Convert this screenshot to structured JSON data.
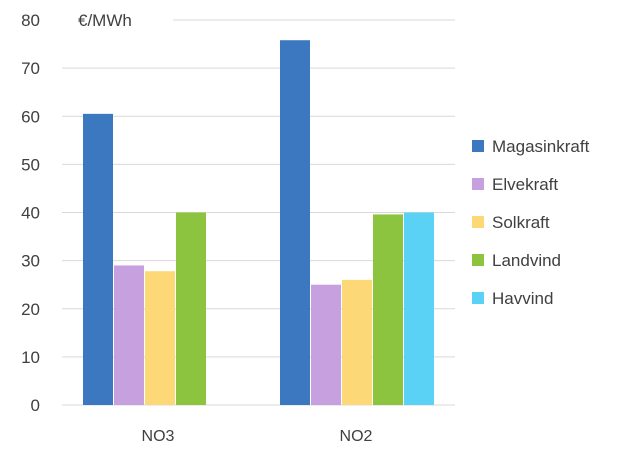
{
  "chart_data": {
    "type": "bar",
    "title": "",
    "xlabel": "",
    "ylabel": "€/MWh",
    "ylim": [
      0,
      80
    ],
    "yticks": [
      0,
      10,
      20,
      30,
      40,
      50,
      60,
      70,
      80
    ],
    "grid": true,
    "legend_position": "right",
    "categories": [
      "NO3",
      "NO2"
    ],
    "series": [
      {
        "name": "Magasinkraft",
        "color": "#3c78c0",
        "values": [
          60.5,
          75.8
        ]
      },
      {
        "name": "Elvekraft",
        "color": "#c7a0e0",
        "values": [
          29,
          25
        ]
      },
      {
        "name": "Solkraft",
        "color": "#fdd877",
        "values": [
          27.8,
          26
        ]
      },
      {
        "name": "Landvind",
        "color": "#8cc43f",
        "values": [
          40,
          39.6
        ]
      },
      {
        "name": "Havvind",
        "color": "#59d2f5",
        "values": [
          null,
          40
        ]
      }
    ]
  }
}
